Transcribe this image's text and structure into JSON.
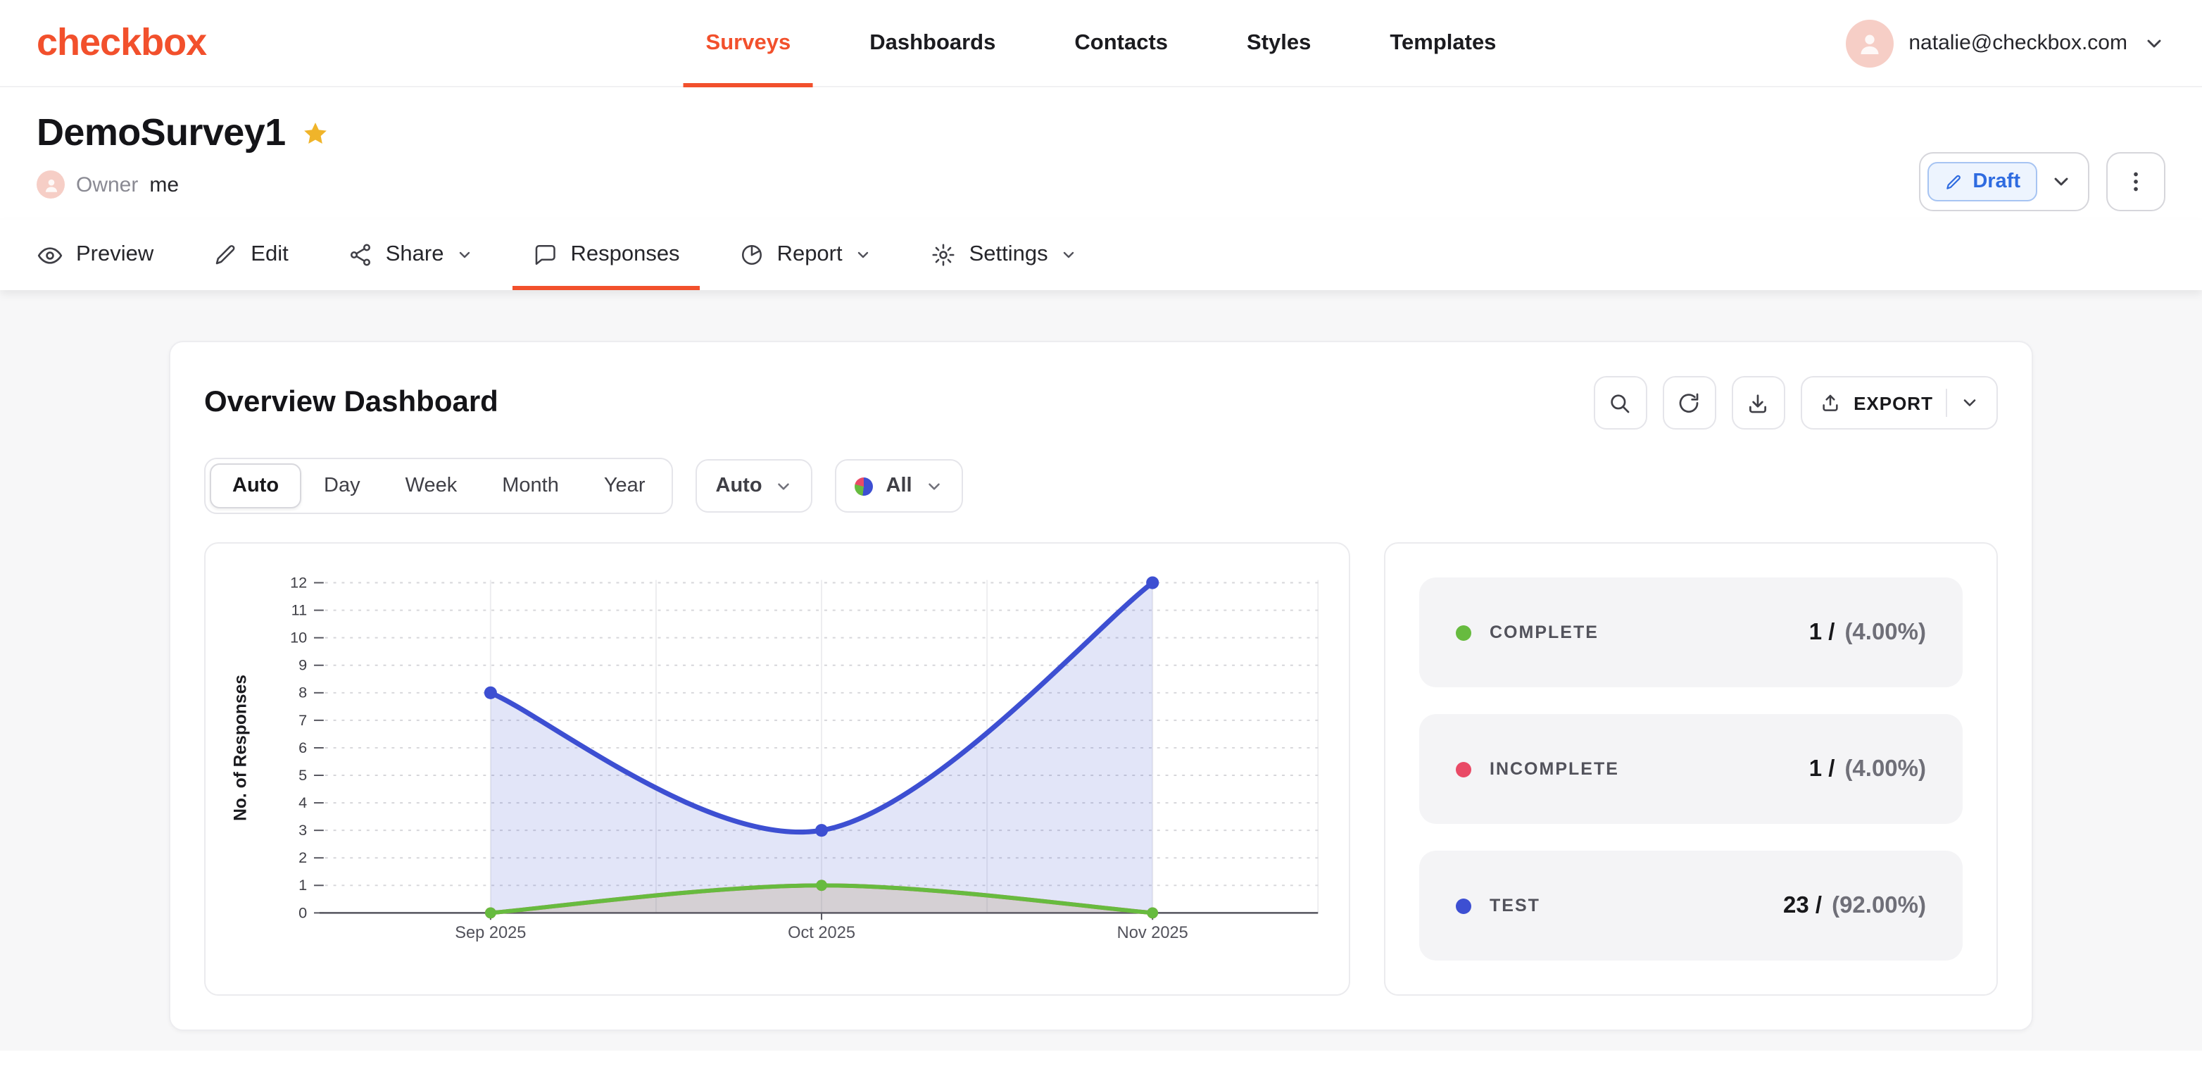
{
  "brand": {
    "logo_text": "checkbox",
    "accent": "#f2502c"
  },
  "topnav": {
    "items": [
      {
        "label": "Surveys",
        "active": true
      },
      {
        "label": "Dashboards",
        "active": false
      },
      {
        "label": "Contacts",
        "active": false
      },
      {
        "label": "Styles",
        "active": false
      },
      {
        "label": "Templates",
        "active": false
      }
    ],
    "user_email": "natalie@checkbox.com"
  },
  "survey": {
    "title": "DemoSurvey1",
    "owner_label": "Owner",
    "owner_name": "me",
    "status_label": "Draft"
  },
  "tabs": {
    "preview": "Preview",
    "edit": "Edit",
    "share": "Share",
    "responses": "Responses",
    "report": "Report",
    "settings": "Settings",
    "active_tab": "Responses"
  },
  "dashboard": {
    "title": "Overview Dashboard",
    "export_label": "EXPORT",
    "range_tabs": [
      "Auto",
      "Day",
      "Week",
      "Month",
      "Year"
    ],
    "range_active": "Auto",
    "interval_select": "Auto",
    "filter_select": "All"
  },
  "chart_data": {
    "type": "area",
    "x_categories": [
      "Sep 2025",
      "Oct 2025",
      "Nov 2025"
    ],
    "ylabel": "No. of Responses",
    "ylim": [
      0,
      12
    ],
    "ytick_step": 1,
    "grid": {
      "horizontal": "dotted",
      "vertical": "light-solid"
    },
    "legend_position": "none",
    "series": [
      {
        "name": "TEST",
        "color": "#3d4fd2",
        "values": [
          8,
          3,
          12
        ]
      },
      {
        "name": "INCOMPLETE",
        "color": "#e94a66",
        "values": [
          0,
          1,
          0
        ]
      },
      {
        "name": "COMPLETE",
        "color": "#67bb3f",
        "values": [
          0,
          1,
          0
        ]
      }
    ]
  },
  "stats": [
    {
      "label": "COMPLETE",
      "color": "#67bb3f",
      "value": "1 /",
      "pct": "(4.00%)"
    },
    {
      "label": "INCOMPLETE",
      "color": "#e94a66",
      "value": "1 /",
      "pct": "(4.00%)"
    },
    {
      "label": "TEST",
      "color": "#3d4fd2",
      "value": "23 /",
      "pct": "(92.00%)"
    }
  ]
}
